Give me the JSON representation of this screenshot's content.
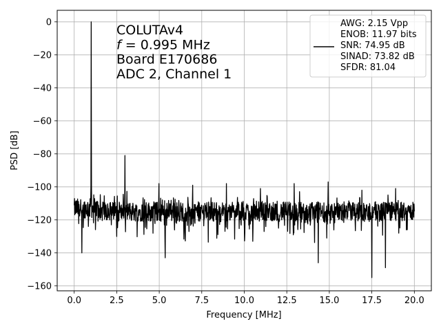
{
  "chart_data": {
    "type": "line",
    "xlabel": "Frequency [MHz]",
    "ylabel": "PSD [dB]",
    "xlim": [
      -1.0,
      21.0
    ],
    "ylim": [
      -163,
      7
    ],
    "xticks": [
      0.0,
      2.5,
      5.0,
      7.5,
      10.0,
      12.5,
      15.0,
      17.5,
      20.0
    ],
    "xtick_labels": [
      "0.0",
      "2.5",
      "5.0",
      "7.5",
      "10.0",
      "12.5",
      "15.0",
      "17.5",
      "20.0"
    ],
    "yticks": [
      0,
      -20,
      -40,
      -60,
      -80,
      -100,
      -120,
      -140,
      -160
    ],
    "ytick_labels": [
      "0",
      "−20",
      "−40",
      "−60",
      "−80",
      "−100",
      "−120",
      "−140",
      "−160"
    ],
    "grid": true,
    "legend_position": "top-right",
    "line_color": "#000000",
    "annotation": [
      {
        "prefix": "",
        "text": "COLUTAv4"
      },
      {
        "prefix": "f",
        "text": " = 0.995 MHz"
      },
      {
        "prefix": "",
        "text": "Board E170686"
      },
      {
        "prefix": "",
        "text": "ADC 2, Channel 1"
      }
    ],
    "legend_lines": [
      "AWG: 2.15 Vpp",
      "ENOB: 11.97 bits",
      "SNR: 74.95 dB",
      "SINAD: 73.82 dB",
      "SFDR: 81.04"
    ],
    "noise_floor": {
      "x_start": 0.0,
      "x_end": 20.0,
      "mean": -115
    },
    "peaks": [
      {
        "x": 0.995,
        "y": 0
      },
      {
        "x": 2.985,
        "y": -81
      },
      {
        "x": 4.975,
        "y": -98
      },
      {
        "x": 6.965,
        "y": -99
      },
      {
        "x": 8.955,
        "y": -98
      },
      {
        "x": 10.945,
        "y": -101
      },
      {
        "x": 12.935,
        "y": -98
      },
      {
        "x": 14.925,
        "y": -97
      },
      {
        "x": 16.915,
        "y": -102
      },
      {
        "x": 18.905,
        "y": -101
      }
    ],
    "dips": [
      {
        "x": 0.45,
        "y": -140
      },
      {
        "x": 5.35,
        "y": -143
      },
      {
        "x": 14.35,
        "y": -146
      },
      {
        "x": 17.5,
        "y": -155
      },
      {
        "x": 18.3,
        "y": -149
      }
    ]
  }
}
